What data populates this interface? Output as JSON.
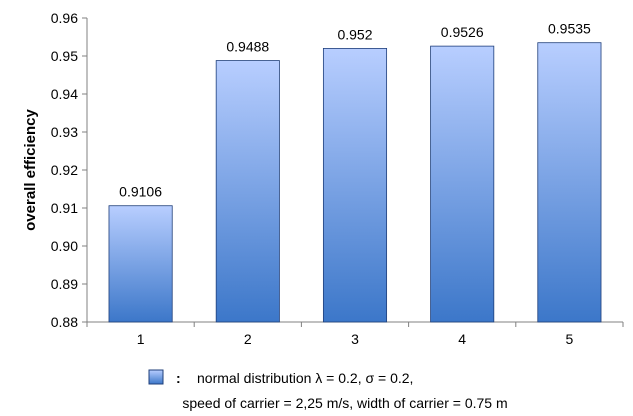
{
  "chart_data": {
    "type": "bar",
    "categories": [
      "1",
      "2",
      "3",
      "4",
      "5"
    ],
    "values": [
      0.9106,
      0.9488,
      0.952,
      0.9526,
      0.9535
    ],
    "data_labels": [
      "0.9106",
      "0.9488",
      "0.952",
      "0.9526",
      "0.9535"
    ],
    "ylabel": "overall efficiency",
    "xlabel": "",
    "ylim": [
      0.88,
      0.96
    ],
    "yticks": [
      0.88,
      0.89,
      0.9,
      0.91,
      0.92,
      0.93,
      0.94,
      0.95,
      0.96
    ],
    "ytick_labels": [
      "0.88",
      "0.89",
      "0.90",
      "0.91",
      "0.92",
      "0.93",
      "0.94",
      "0.95",
      "0.96"
    ],
    "grid": false,
    "legend": {
      "placement": "bottom",
      "separator": ":",
      "line1": "normal distribution λ = 0.2, σ = 0.2,",
      "line2": "speed of carrier = 2,25 m/s, width of carrier = 0.75 m"
    },
    "colors": {
      "bar_top": "#b8ceff",
      "bar_bottom": "#3c77c9",
      "bar_stroke": "#1f3f7a",
      "axis": "#808080"
    }
  }
}
